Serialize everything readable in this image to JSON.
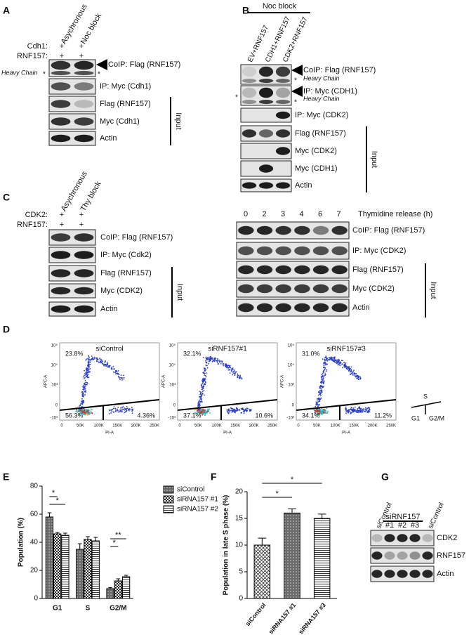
{
  "panels": {
    "a": {
      "label": "A",
      "columns": [
        "Asychronous",
        "Noc block"
      ],
      "conditions": [
        {
          "name": "Cdh1:",
          "marks": [
            "+",
            "+"
          ]
        },
        {
          "name": "RNF157:",
          "marks": [
            "+",
            "+"
          ]
        }
      ],
      "blots": [
        "CoIP: Flag (RNF157)",
        "IP: Myc (Cdh1)",
        "Flag (RNF157)",
        "Myc (Cdh1)",
        "Actin"
      ],
      "heavy_chain": "Heavy Chain",
      "asterisks": [
        "*",
        "*"
      ],
      "input": "Input"
    },
    "b": {
      "label": "B",
      "header": "Noc block",
      "columns": [
        "EV+RNF157",
        "CDH1+RNF157",
        "CDK2+RNF157"
      ],
      "blots": [
        "CoIP: Flag (RNF157)",
        "IP: Myc (CDH1)",
        "IP: Myc (CDK2)",
        "Flag (RNF157)",
        "Myc (CDK2)",
        "Myc (CDH1)",
        "Actin"
      ],
      "heavy_chain": [
        "Heavy Chain",
        "Heavy Chain"
      ],
      "asterisks": [
        "*",
        "*",
        "*"
      ],
      "input": "Input"
    },
    "c": {
      "label": "C",
      "columns": [
        "Asychronous",
        "Thy block"
      ],
      "conditions": [
        {
          "name": "CDK2:",
          "marks": [
            "+",
            "+"
          ]
        },
        {
          "name": "RNF157:",
          "marks": [
            "+",
            "+"
          ]
        }
      ],
      "blots": [
        "CoIP: Flag (RNF157)",
        "IP: Myc (Cdk2)",
        "Flag (RNF157)",
        "Myc (CDK2)",
        "Actin"
      ],
      "input": "Input",
      "release": {
        "title": "Thymidine release (h)",
        "times": [
          0,
          2,
          3,
          4,
          6,
          7
        ],
        "blots": [
          "CoIP: Flag (RNF157)",
          "IP: Myc (CDK2)",
          "Flag (RNF157)",
          "Myc (CDK2)",
          "Actin"
        ],
        "input": "Input"
      }
    },
    "d": {
      "label": "D",
      "x_axis": "PI-A",
      "y_axis": "APC-A",
      "xticks": [
        "0",
        "50K",
        "100K",
        "150K",
        "200K",
        "250K"
      ],
      "yticks": [
        "10⁵",
        "10⁴",
        "10³",
        "0",
        "-10³"
      ],
      "plots": [
        {
          "title": "siControl",
          "quadrants": [
            "23.8%",
            "56.3%",
            "4.36%"
          ]
        },
        {
          "title": "siRNF157#1",
          "quadrants": [
            "32.1%",
            "37.1%",
            "10.6%"
          ]
        },
        {
          "title": "siRNF157#3",
          "quadrants": [
            "31.0%",
            "34.1%",
            "11.2%"
          ]
        }
      ],
      "legend": {
        "top": "S",
        "left": "G1",
        "right": "G2/M"
      }
    },
    "g": {
      "label": "G",
      "header": "siRNF157",
      "columns": [
        "siControl",
        "#1",
        "#2",
        "#3",
        "siControl"
      ],
      "blots": [
        "CDK2",
        "RNF157",
        "Actin"
      ]
    }
  },
  "chart_data": [
    {
      "type": "bar",
      "label": "E",
      "y_label": "Population (%)",
      "categories": [
        "G1",
        "S",
        "G2/M"
      ],
      "series": [
        {
          "name": "siControl",
          "fill_pattern": "dots",
          "values": [
            58,
            35,
            7
          ],
          "errors": [
            3,
            4,
            0.8
          ]
        },
        {
          "name": "siRNA157 #1",
          "fill_pattern": "checker",
          "values": [
            46,
            42,
            12.5
          ],
          "errors": [
            1,
            2,
            1.5
          ]
        },
        {
          "name": "siRNA157 #2",
          "fill_pattern": "stripes",
          "values": [
            45,
            41,
            15.5
          ],
          "errors": [
            1.5,
            2.5,
            1
          ]
        }
      ],
      "ylim": [
        0,
        80
      ],
      "yticks": [
        0,
        20,
        40,
        60,
        80
      ],
      "significance": [
        "*",
        "*",
        "**",
        "*"
      ]
    },
    {
      "type": "bar",
      "label": "F",
      "y_label": "Population in late S phase (%)",
      "categories": [
        "siControl",
        "siRNA157 #1",
        "siRNA157 #3"
      ],
      "values": [
        10,
        16,
        15
      ],
      "errors": [
        1.3,
        0.8,
        0.8
      ],
      "fill_patterns": [
        "hatch",
        "dots",
        "stripes"
      ],
      "ylim": [
        0,
        20
      ],
      "yticks": [
        0,
        5,
        10,
        15,
        20
      ],
      "significance": [
        "*",
        "*"
      ]
    }
  ]
}
